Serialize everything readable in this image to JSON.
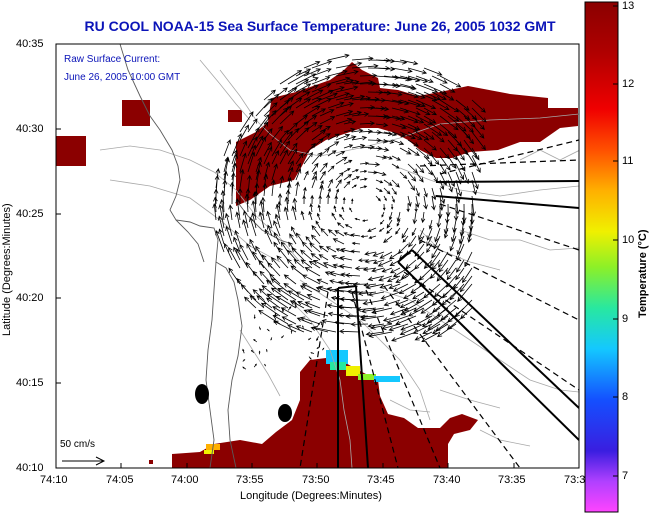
{
  "title": "RU COOL  NOAA-15  Sea Surface Temperature:  June 26, 2005 1032 GMT",
  "legend_text": {
    "line1": "Raw Surface Current:",
    "line2": "June 26, 2005 10:00 GMT"
  },
  "scale_label": "50 cm/s",
  "x_axis": {
    "label": "Longitude (Degrees:Minutes)",
    "ticks": [
      "74:10",
      "74:05",
      "74:00",
      "73:55",
      "73:50",
      "73:45",
      "73:40",
      "73:35",
      "73:3"
    ]
  },
  "y_axis": {
    "label": "Latitude (Degrees:Minutes)",
    "ticks": [
      "40:35",
      "40:30",
      "40:25",
      "40:20",
      "40:15",
      "40:10"
    ]
  },
  "colorbar": {
    "label": "Temperature (°C)",
    "ticks": [
      "13",
      "12",
      "11",
      "10",
      "9",
      "8",
      "7"
    ],
    "colors": [
      "#ff44ff",
      "#7a30c8",
      "#3a1ee0",
      "#1450ff",
      "#14c8ff",
      "#28e8a0",
      "#8cf028",
      "#f0f000",
      "#ffb000",
      "#ff5000",
      "#f00000",
      "#a00000",
      "#8b0000"
    ]
  },
  "sst_color": "#8b0000",
  "title_color": "#0b14b8"
}
